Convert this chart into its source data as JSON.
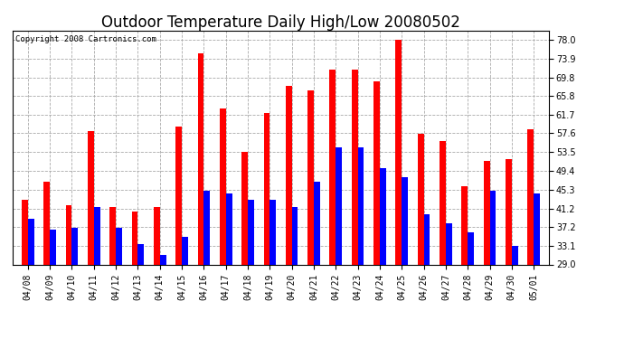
{
  "title": "Outdoor Temperature Daily High/Low 20080502",
  "copyright": "Copyright 2008 Cartronics.com",
  "categories": [
    "04/08",
    "04/09",
    "04/10",
    "04/11",
    "04/12",
    "04/13",
    "04/14",
    "04/15",
    "04/16",
    "04/17",
    "04/18",
    "04/19",
    "04/20",
    "04/21",
    "04/22",
    "04/23",
    "04/24",
    "04/25",
    "04/26",
    "04/27",
    "04/28",
    "04/29",
    "04/30",
    "05/01"
  ],
  "highs": [
    43.0,
    47.0,
    42.0,
    58.0,
    41.5,
    40.5,
    41.5,
    59.0,
    75.0,
    63.0,
    53.5,
    62.0,
    68.0,
    67.0,
    71.5,
    71.5,
    69.0,
    78.0,
    57.5,
    56.0,
    46.0,
    51.5,
    52.0,
    58.5
  ],
  "lows": [
    39.0,
    36.5,
    37.0,
    41.5,
    37.0,
    33.5,
    31.0,
    35.0,
    45.0,
    44.5,
    43.0,
    43.0,
    41.5,
    47.0,
    54.5,
    54.5,
    50.0,
    48.0,
    40.0,
    38.0,
    36.0,
    45.0,
    33.0,
    44.5
  ],
  "high_color": "#ff0000",
  "low_color": "#0000ff",
  "bg_color": "#ffffff",
  "grid_color": "#aaaaaa",
  "ylim_min": 29.0,
  "ylim_max": 80.0,
  "yticks": [
    29.0,
    33.1,
    37.2,
    41.2,
    45.3,
    49.4,
    53.5,
    57.6,
    61.7,
    65.8,
    69.8,
    73.9,
    78.0
  ],
  "bar_width": 0.28,
  "title_fontsize": 12,
  "tick_fontsize": 7,
  "copyright_fontsize": 6.5
}
